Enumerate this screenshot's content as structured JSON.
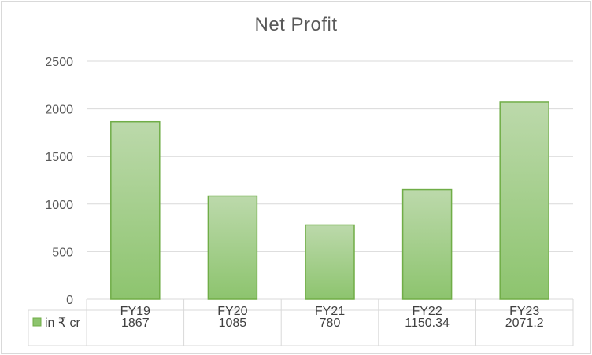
{
  "chart_data": {
    "type": "bar",
    "title": "Net Profit",
    "categories": [
      "FY19",
      "FY20",
      "FY21",
      "FY22",
      "FY23"
    ],
    "series": [
      {
        "name": "in ₹ cr",
        "values": [
          1867,
          1085,
          780,
          1150.34,
          2071.2
        ],
        "labels": [
          "1867",
          "1085",
          "780",
          "1150.34",
          "2071.2"
        ]
      }
    ],
    "ylim": [
      0,
      2500
    ],
    "yticks": [
      "0",
      "500",
      "1000",
      "1500",
      "2000",
      "2500"
    ],
    "grid": true,
    "legend": "data-table",
    "colors": {
      "fill_top": "#bcd9ab",
      "fill_bottom": "#8dc46e",
      "stroke": "#70ad47"
    }
  }
}
